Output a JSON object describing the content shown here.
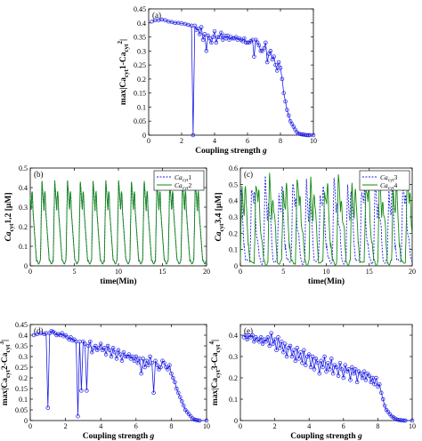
{
  "chart_data": [
    {
      "type": "line",
      "panel_label": "(a)",
      "ylabel_main": "max|Ca",
      "ylabel_sub1": "cyt",
      "ylabel_mid": "1-Ca",
      "ylabel_sub2": "cyt",
      "ylabel_sup": "2",
      "ylabel_end": "|",
      "xlabel_main": "Coupling strength ",
      "xlabel_var": "g",
      "xlim": [
        0,
        10
      ],
      "ylim": [
        0,
        0.45
      ],
      "xticks": [
        "0",
        "2",
        "4",
        "6",
        "8",
        "10"
      ],
      "yticks": [
        "0",
        "0.05",
        "0.1",
        "0.15",
        "0.2",
        "0.25",
        "0.3",
        "0.35",
        "0.4",
        "0.45"
      ],
      "marker": "circle",
      "color": "#1f1fe6",
      "series": [
        {
          "x": [
            0.2,
            0.4,
            0.6,
            0.8,
            1.0,
            1.2,
            1.4,
            1.6,
            1.8,
            2.0,
            2.2,
            2.4,
            2.6,
            2.7,
            2.8,
            2.9,
            3.0,
            3.1,
            3.2,
            3.3,
            3.4,
            3.5,
            3.6,
            3.7,
            3.8,
            3.9,
            4.0,
            4.1,
            4.2,
            4.3,
            4.4,
            4.5,
            4.6,
            4.7,
            4.8,
            4.9,
            5.0,
            5.1,
            5.2,
            5.3,
            5.4,
            5.5,
            5.6,
            5.7,
            5.8,
            5.9,
            6.0,
            6.1,
            6.2,
            6.3,
            6.4,
            6.5,
            6.6,
            6.7,
            6.8,
            6.9,
            7.0,
            7.1,
            7.2,
            7.3,
            7.4,
            7.5,
            7.6,
            7.7,
            7.8,
            7.9,
            8.0,
            8.1,
            8.2,
            8.3,
            8.4,
            8.5,
            8.6,
            8.7,
            8.8,
            8.9,
            9.0,
            9.1,
            9.2,
            9.3,
            9.4,
            9.5,
            9.6,
            9.7,
            9.8,
            10.0
          ],
          "y": [
            0.405,
            0.41,
            0.41,
            0.412,
            0.41,
            0.405,
            0.403,
            0.4,
            0.4,
            0.398,
            0.396,
            0.393,
            0.39,
            0.0,
            0.39,
            0.375,
            0.38,
            0.36,
            0.385,
            0.34,
            0.36,
            0.3,
            0.355,
            0.345,
            0.33,
            0.35,
            0.37,
            0.33,
            0.35,
            0.35,
            0.365,
            0.34,
            0.355,
            0.345,
            0.355,
            0.34,
            0.35,
            0.345,
            0.345,
            0.35,
            0.34,
            0.345,
            0.34,
            0.335,
            0.345,
            0.33,
            0.33,
            0.33,
            0.335,
            0.34,
            0.28,
            0.34,
            0.33,
            0.32,
            0.3,
            0.3,
            0.31,
            0.33,
            0.26,
            0.29,
            0.3,
            0.27,
            0.28,
            0.25,
            0.23,
            0.26,
            0.24,
            0.2,
            0.15,
            0.12,
            0.09,
            0.07,
            0.05,
            0.04,
            0.03,
            0.02,
            0.01,
            0.005,
            0.004,
            0.003,
            0.002,
            0.001,
            0.0,
            0.0,
            0.0,
            0.0
          ]
        }
      ]
    },
    {
      "type": "line",
      "panel_label": "(b)",
      "ylabel_main": "Ca",
      "ylabel_sub": "cyt",
      "ylabel_end": "1,2 [µM]",
      "xlabel": "time(Min)",
      "xlim": [
        0,
        20
      ],
      "ylim": [
        0,
        0.5
      ],
      "xticks": [
        "0",
        "5",
        "10",
        "15",
        "20"
      ],
      "yticks": [
        "0",
        "0.1",
        "0.2",
        "0.3",
        "0.4",
        "0.5"
      ],
      "legend_position": "top-right",
      "series": [
        {
          "name_main": "Ca",
          "name_sub": "cyt",
          "name_end": "1",
          "style": "dashed",
          "color": "#1f1fe6",
          "period": 1.45,
          "peak": 0.44,
          "base": 0.02,
          "phase": 0.3
        },
        {
          "name_main": "Ca",
          "name_sub": "cyt",
          "name_end": "2",
          "style": "solid",
          "color": "#138a13",
          "period": 1.45,
          "peak": 0.44,
          "base": 0.02,
          "phase": 0.3
        }
      ]
    },
    {
      "type": "line",
      "panel_label": "(c)",
      "ylabel_main": "Ca",
      "ylabel_sub": "cyt",
      "ylabel_end": "3,4 [µM]",
      "xlabel": "time(Min)",
      "xlim": [
        0,
        20
      ],
      "ylim": [
        0,
        0.6
      ],
      "xticks": [
        "0",
        "5",
        "10",
        "15",
        "20"
      ],
      "yticks": [
        "0",
        "0.1",
        "0.2",
        "0.3",
        "0.4",
        "0.5",
        "0.6"
      ],
      "legend_position": "top-right",
      "series": [
        {
          "name_main": "Ca",
          "name_sub": "cyt",
          "name_end": "3",
          "style": "dashed",
          "color": "#1f1fe6",
          "period": 1.6,
          "peak": 0.5,
          "base": 0.03,
          "phase": 0.5
        },
        {
          "name_main": "Ca",
          "name_sub": "cyt",
          "name_end": "4",
          "style": "solid",
          "color": "#138a13",
          "period": 1.6,
          "peak": 0.52,
          "base": 0.02,
          "phase": 0.0
        }
      ]
    },
    {
      "type": "line",
      "panel_label": "(d)",
      "ylabel_main": "max|Ca",
      "ylabel_sub1": "cyt",
      "ylabel_mid": "2-Ca",
      "ylabel_sub2": "cyt",
      "ylabel_sup": "3",
      "ylabel_end": "|",
      "xlabel_main": "Coupling strength ",
      "xlabel_var": "g",
      "xlim": [
        0,
        10
      ],
      "ylim": [
        0,
        0.45
      ],
      "xticks": [
        "0",
        "2",
        "4",
        "6",
        "8",
        "10"
      ],
      "yticks": [
        "0",
        "0.05",
        "0.1",
        "0.15",
        "0.2",
        "0.25",
        "0.3",
        "0.35",
        "0.4",
        "0.45"
      ],
      "marker": "circle",
      "color": "#1f1fe6",
      "series": [
        {
          "x": [
            0.2,
            0.4,
            0.6,
            0.8,
            0.9,
            1.0,
            1.1,
            1.2,
            1.3,
            1.4,
            1.5,
            1.6,
            1.7,
            1.8,
            1.9,
            2.0,
            2.1,
            2.2,
            2.3,
            2.4,
            2.5,
            2.6,
            2.7,
            2.8,
            2.9,
            3.0,
            3.1,
            3.2,
            3.3,
            3.4,
            3.5,
            3.6,
            3.7,
            3.8,
            3.9,
            4.0,
            4.1,
            4.2,
            4.3,
            4.4,
            4.5,
            4.6,
            4.7,
            4.8,
            4.9,
            5.0,
            5.1,
            5.2,
            5.3,
            5.4,
            5.5,
            5.6,
            5.7,
            5.8,
            5.9,
            6.0,
            6.1,
            6.2,
            6.3,
            6.4,
            6.5,
            6.6,
            6.7,
            6.8,
            6.9,
            7.0,
            7.1,
            7.2,
            7.3,
            7.4,
            7.5,
            7.6,
            7.7,
            7.8,
            7.9,
            8.0,
            8.1,
            8.2,
            8.3,
            8.4,
            8.5,
            8.6,
            8.7,
            8.8,
            8.9,
            9.0,
            9.1,
            9.2,
            9.3,
            9.4,
            9.5,
            9.6,
            10.0
          ],
          "y": [
            0.4,
            0.405,
            0.41,
            0.405,
            0.41,
            0.06,
            0.41,
            0.42,
            0.415,
            0.41,
            0.4,
            0.405,
            0.4,
            0.41,
            0.395,
            0.4,
            0.39,
            0.38,
            0.39,
            0.375,
            0.38,
            0.37,
            0.02,
            0.37,
            0.14,
            0.37,
            0.36,
            0.14,
            0.35,
            0.37,
            0.32,
            0.34,
            0.35,
            0.33,
            0.34,
            0.36,
            0.33,
            0.34,
            0.31,
            0.35,
            0.33,
            0.3,
            0.34,
            0.32,
            0.29,
            0.33,
            0.31,
            0.28,
            0.32,
            0.3,
            0.3,
            0.31,
            0.29,
            0.3,
            0.28,
            0.3,
            0.27,
            0.29,
            0.22,
            0.29,
            0.25,
            0.28,
            0.26,
            0.3,
            0.27,
            0.13,
            0.28,
            0.26,
            0.24,
            0.25,
            0.28,
            0.27,
            0.25,
            0.24,
            0.26,
            0.22,
            0.2,
            0.18,
            0.15,
            0.13,
            0.11,
            0.09,
            0.07,
            0.05,
            0.04,
            0.03,
            0.02,
            0.01,
            0.005,
            0.003,
            0.001,
            0.0,
            0.0
          ]
        }
      ]
    },
    {
      "type": "line",
      "panel_label": "(e)",
      "ylabel_main": "max|Ca",
      "ylabel_sub1": "cyt",
      "ylabel_mid": "3-Ca",
      "ylabel_sub2": "cyt",
      "ylabel_sup": "4",
      "ylabel_end": "|",
      "xlabel_main": "Coupling strength ",
      "xlabel_var": "g",
      "xlim": [
        0,
        10
      ],
      "ylim": [
        0,
        0.45
      ],
      "xticks": [
        "0",
        "2",
        "4",
        "6",
        "8",
        "10"
      ],
      "yticks": [
        "0",
        "0.1",
        "0.2",
        "0.3",
        "0.4"
      ],
      "marker": "circle",
      "color": "#1f1fe6",
      "series": [
        {
          "x": [
            0.2,
            0.3,
            0.4,
            0.5,
            0.6,
            0.7,
            0.8,
            0.9,
            1.0,
            1.1,
            1.2,
            1.3,
            1.4,
            1.5,
            1.6,
            1.7,
            1.8,
            1.9,
            2.0,
            2.1,
            2.2,
            2.3,
            2.4,
            2.5,
            2.6,
            2.7,
            2.8,
            2.9,
            3.0,
            3.1,
            3.2,
            3.3,
            3.4,
            3.5,
            3.6,
            3.7,
            3.8,
            3.9,
            4.0,
            4.1,
            4.2,
            4.3,
            4.4,
            4.5,
            4.6,
            4.7,
            4.8,
            4.9,
            5.0,
            5.1,
            5.2,
            5.3,
            5.4,
            5.5,
            5.6,
            5.7,
            5.8,
            5.9,
            6.0,
            6.1,
            6.2,
            6.3,
            6.4,
            6.5,
            6.6,
            6.7,
            6.8,
            6.9,
            7.0,
            7.1,
            7.2,
            7.3,
            7.4,
            7.5,
            7.6,
            7.7,
            7.8,
            7.9,
            8.0,
            8.1,
            8.2,
            8.3,
            8.4,
            8.5,
            8.6,
            8.7,
            8.8,
            8.9,
            9.0,
            9.1,
            9.2,
            9.3,
            9.4,
            9.5,
            9.6,
            10.0
          ],
          "y": [
            0.39,
            0.4,
            0.38,
            0.4,
            0.39,
            0.4,
            0.37,
            0.39,
            0.38,
            0.37,
            0.39,
            0.36,
            0.38,
            0.37,
            0.39,
            0.35,
            0.41,
            0.36,
            0.38,
            0.33,
            0.39,
            0.34,
            0.37,
            0.32,
            0.36,
            0.3,
            0.34,
            0.35,
            0.3,
            0.33,
            0.28,
            0.34,
            0.29,
            0.32,
            0.27,
            0.33,
            0.26,
            0.3,
            0.31,
            0.25,
            0.3,
            0.24,
            0.29,
            0.27,
            0.22,
            0.28,
            0.25,
            0.3,
            0.23,
            0.27,
            0.24,
            0.29,
            0.22,
            0.26,
            0.25,
            0.21,
            0.27,
            0.24,
            0.2,
            0.26,
            0.23,
            0.24,
            0.19,
            0.25,
            0.22,
            0.24,
            0.18,
            0.23,
            0.22,
            0.2,
            0.23,
            0.19,
            0.22,
            0.21,
            0.18,
            0.2,
            0.17,
            0.2,
            0.16,
            0.17,
            0.13,
            0.1,
            0.07,
            0.05,
            0.04,
            0.03,
            0.02,
            0.015,
            0.01,
            0.005,
            0.003,
            0.002,
            0.001,
            0.0,
            0.0,
            0.0
          ]
        }
      ]
    }
  ]
}
